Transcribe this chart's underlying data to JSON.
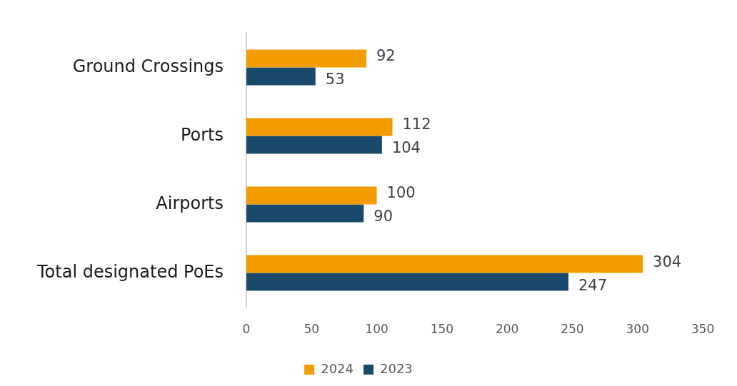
{
  "chart_data": {
    "type": "bar",
    "orientation": "horizontal",
    "categories": [
      "Ground Crossings",
      "Ports",
      "Airports",
      "Total designated PoEs"
    ],
    "series": [
      {
        "name": "2024",
        "color": "#f39c00",
        "values": [
          92,
          112,
          100,
          304
        ]
      },
      {
        "name": "2023",
        "color": "#1a4a6b",
        "values": [
          53,
          104,
          90,
          247
        ]
      }
    ],
    "xlim": [
      0,
      350
    ],
    "xticks": [
      0,
      50,
      100,
      150,
      200,
      250,
      300,
      350
    ],
    "grid": false,
    "legend": "bottom",
    "data_labels": true
  }
}
